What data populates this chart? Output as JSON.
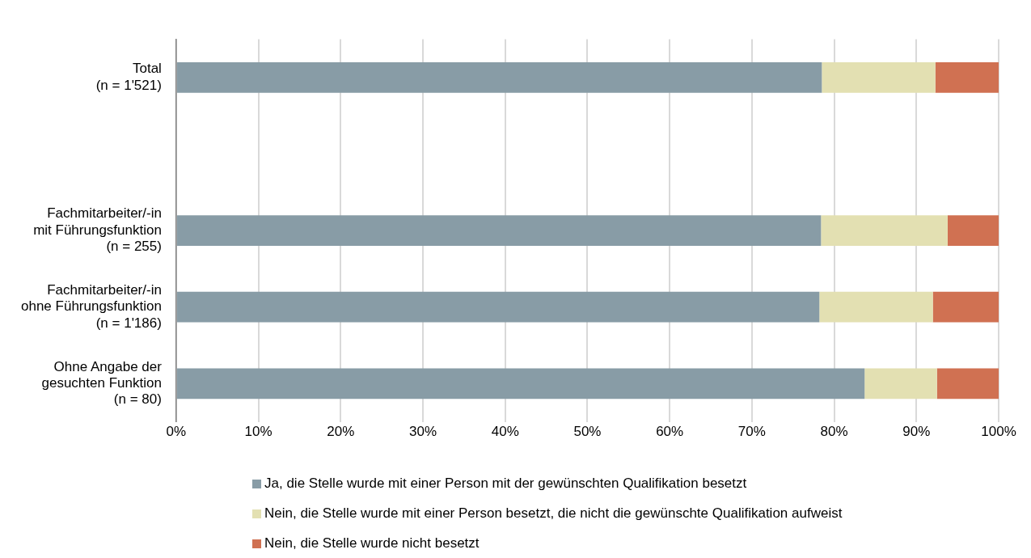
{
  "chart_data": {
    "type": "bar",
    "orientation": "horizontal",
    "stacked": true,
    "categories": [
      "Total\n(n = 1'521)",
      null,
      "Fachmitarbeiter/-in\nmit Führungsfunktion\n(n = 255)",
      "Fachmitarbeiter/-in\nohne Führungsfunktion\n(n = 1'186)",
      "Ohne Angabe der\ngesuchten Funktion\n(n = 80)"
    ],
    "series": [
      {
        "name": "Ja, die Stelle wurde mit einer Person mit der gewünschten Qualifikation besetzt",
        "color": "#889ca6",
        "values": [
          78.5,
          null,
          78.4,
          78.2,
          83.7
        ]
      },
      {
        "name": "Nein, die Stelle wurde mit einer Person besetzt, die nicht die gewünschte Qualifikation aufweist",
        "color": "#e3e0b2",
        "values": [
          13.8,
          null,
          15.4,
          13.8,
          8.8
        ]
      },
      {
        "name": "Nein, die Stelle wurde nicht besetzt",
        "color": "#d07152",
        "values": [
          7.7,
          null,
          6.2,
          8.0,
          7.5
        ]
      }
    ],
    "xlim": [
      0,
      100
    ],
    "xticks": [
      {
        "value": 0,
        "label": "0%"
      },
      {
        "value": 10,
        "label": "10%"
      },
      {
        "value": 20,
        "label": "20%"
      },
      {
        "value": 30,
        "label": "30%"
      },
      {
        "value": 40,
        "label": "40%"
      },
      {
        "value": 50,
        "label": "50%"
      },
      {
        "value": 60,
        "label": "60%"
      },
      {
        "value": 70,
        "label": "70%"
      },
      {
        "value": 80,
        "label": "80%"
      },
      {
        "value": 90,
        "label": "90%"
      },
      {
        "value": 100,
        "label": "100%"
      }
    ],
    "grid": "x",
    "legend": "bottom"
  }
}
